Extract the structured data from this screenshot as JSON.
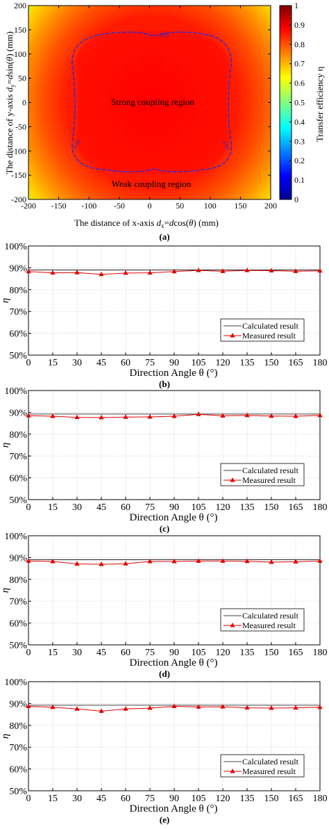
{
  "chart_data": [
    {
      "type": "heatmap",
      "panel_label": "(a)",
      "xlabel_parts": [
        "The distance of x-axis ",
        "d",
        "x",
        "=",
        "d",
        "cos(",
        "θ",
        ") (mm)"
      ],
      "ylabel_parts": [
        "The distance of y-axis ",
        "d",
        "y",
        "=",
        "d",
        "sin(",
        "θ",
        ") (mm)"
      ],
      "xlim": [
        -200,
        200
      ],
      "ylim": [
        -200,
        200
      ],
      "xticks": [
        "-200",
        "-150",
        "-100",
        "-50",
        "0",
        "50",
        "100",
        "150",
        "200"
      ],
      "yticks": [
        "-200",
        "-150",
        "-100",
        "-50",
        "0",
        "50",
        "100",
        "150",
        "200"
      ],
      "colorbar": {
        "label": "Transfer efficiency η",
        "range": [
          0,
          1
        ],
        "ticks": [
          "0",
          "0.1",
          "0.2",
          "0.3",
          "0.4",
          "0.5",
          "0.6",
          "0.7",
          "0.8",
          "0.9",
          "1"
        ],
        "colormap": "jet"
      },
      "contour_level": 0.8,
      "contour_labels": [
        "0.8x",
        "0.8x",
        "0.8x"
      ],
      "annotations": [
        "Strong coupling region",
        "Weak coupling region"
      ]
    },
    {
      "type": "line",
      "panel_label": "(b)",
      "xlabel": "Direction Angle θ (°)",
      "ylabel": "η",
      "x": [
        0,
        15,
        30,
        45,
        60,
        75,
        90,
        105,
        120,
        135,
        150,
        165,
        180
      ],
      "xticks": [
        "0",
        "15",
        "30",
        "45",
        "60",
        "75",
        "90",
        "105",
        "120",
        "135",
        "150",
        "165",
        "180"
      ],
      "yticks": [
        "50%",
        "60%",
        "70%",
        "80%",
        "90%",
        "100%"
      ],
      "ylim": [
        0.5,
        1.0
      ],
      "grid": true,
      "legend": "lower-right",
      "series": [
        {
          "name": "Calculated result",
          "color": "#000000",
          "values": [
            0.89,
            0.89,
            0.89,
            0.89,
            0.89,
            0.89,
            0.89,
            0.89,
            0.89,
            0.89,
            0.89,
            0.89,
            0.89
          ]
        },
        {
          "name": "Measured result",
          "color": "#e00000",
          "values": [
            0.883,
            0.877,
            0.878,
            0.87,
            0.876,
            0.877,
            0.883,
            0.888,
            0.884,
            0.888,
            0.887,
            0.884,
            0.886
          ]
        }
      ]
    },
    {
      "type": "line",
      "panel_label": "(c)",
      "xlabel": "Direction Angle θ (°)",
      "ylabel": "η",
      "x": [
        0,
        15,
        30,
        45,
        60,
        75,
        90,
        105,
        120,
        135,
        150,
        165,
        180
      ],
      "xticks": [
        "0",
        "15",
        "30",
        "45",
        "60",
        "75",
        "90",
        "105",
        "120",
        "135",
        "150",
        "165",
        "180"
      ],
      "yticks": [
        "50%",
        "60%",
        "70%",
        "80%",
        "90%",
        "100%"
      ],
      "ylim": [
        0.5,
        1.0
      ],
      "grid": true,
      "legend": "lower-right",
      "series": [
        {
          "name": "Calculated result",
          "color": "#000000",
          "values": [
            0.892,
            0.892,
            0.892,
            0.892,
            0.892,
            0.892,
            0.892,
            0.892,
            0.892,
            0.892,
            0.892,
            0.892,
            0.892
          ]
        },
        {
          "name": "Measured result",
          "color": "#e00000",
          "values": [
            0.885,
            0.882,
            0.877,
            0.876,
            0.878,
            0.879,
            0.882,
            0.891,
            0.884,
            0.886,
            0.883,
            0.882,
            0.886
          ]
        }
      ]
    },
    {
      "type": "line",
      "panel_label": "(d)",
      "xlabel": "Direction Angle θ (°)",
      "ylabel": "η",
      "x": [
        0,
        15,
        30,
        45,
        60,
        75,
        90,
        105,
        120,
        135,
        150,
        165,
        180
      ],
      "xticks": [
        "0",
        "15",
        "30",
        "45",
        "60",
        "75",
        "90",
        "105",
        "120",
        "135",
        "150",
        "165",
        "180"
      ],
      "yticks": [
        "50%",
        "60%",
        "70%",
        "80%",
        "90%",
        "100%"
      ],
      "ylim": [
        0.5,
        1.0
      ],
      "grid": true,
      "legend": "lower-right",
      "series": [
        {
          "name": "Calculated result",
          "color": "#000000",
          "values": [
            0.89,
            0.89,
            0.89,
            0.89,
            0.89,
            0.89,
            0.89,
            0.89,
            0.89,
            0.89,
            0.89,
            0.89,
            0.89
          ]
        },
        {
          "name": "Measured result",
          "color": "#e00000",
          "values": [
            0.884,
            0.882,
            0.871,
            0.869,
            0.872,
            0.882,
            0.882,
            0.884,
            0.884,
            0.883,
            0.879,
            0.881,
            0.884
          ]
        }
      ]
    },
    {
      "type": "line",
      "panel_label": "(e)",
      "xlabel": "Direction Angle θ (°)",
      "ylabel": "η",
      "x": [
        0,
        15,
        30,
        45,
        60,
        75,
        90,
        105,
        120,
        135,
        150,
        165,
        180
      ],
      "xticks": [
        "0",
        "15",
        "30",
        "45",
        "60",
        "75",
        "90",
        "105",
        "120",
        "135",
        "150",
        "165",
        "180"
      ],
      "yticks": [
        "50%",
        "60%",
        "70%",
        "80%",
        "90%",
        "100%"
      ],
      "ylim": [
        0.5,
        1.0
      ],
      "grid": true,
      "legend": "lower-right",
      "series": [
        {
          "name": "Calculated result",
          "color": "#000000",
          "values": [
            0.892,
            0.892,
            0.892,
            0.892,
            0.892,
            0.892,
            0.892,
            0.892,
            0.892,
            0.892,
            0.892,
            0.892,
            0.892
          ]
        },
        {
          "name": "Measured result",
          "color": "#e00000",
          "values": [
            0.887,
            0.883,
            0.875,
            0.865,
            0.875,
            0.879,
            0.887,
            0.884,
            0.885,
            0.88,
            0.879,
            0.88,
            0.883
          ]
        }
      ]
    }
  ]
}
